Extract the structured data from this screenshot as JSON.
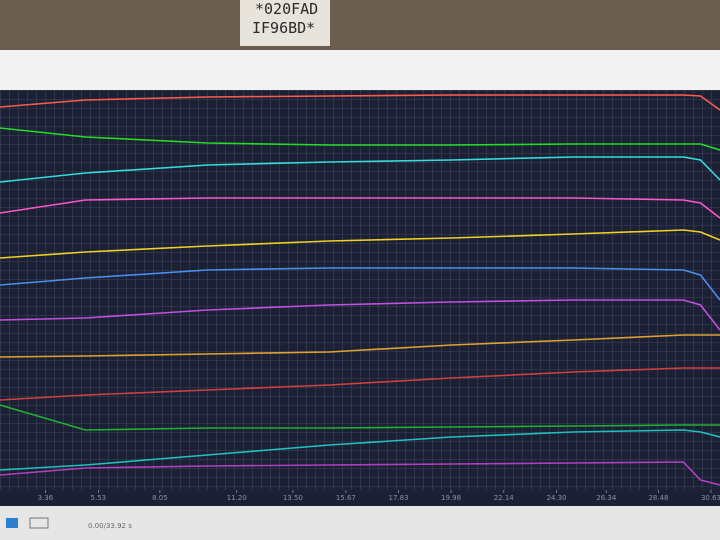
{
  "sticker": {
    "line1": "*020FAD",
    "line2": "IF96BD*"
  },
  "status": "0.00/33.92 s",
  "chart_data": {
    "type": "line",
    "x": [
      1.5,
      5,
      10,
      15,
      20,
      25,
      29.5,
      30.2,
      31
    ],
    "xlim": [
      1.5,
      31
    ],
    "ylim": [
      0,
      100
    ],
    "xticks": [
      3.36,
      5.53,
      8.05,
      {
        "value": 11.2,
        "label": "11.20"
      },
      {
        "value": 13.5,
        "label": "13.50"
      },
      15.67,
      17.83,
      19.98,
      22.14,
      {
        "value": 24.3,
        "label": "24.30"
      },
      26.34,
      28.48,
      30.63
    ],
    "grid": true,
    "series": [
      {
        "color": "#ff5a4a",
        "values": [
          95.75,
          97.5,
          98.25,
          98.5,
          98.75,
          98.75,
          98.75,
          98.5,
          95
        ]
      },
      {
        "color": "#22dd22",
        "values": [
          90.5,
          88.25,
          86.75,
          86.25,
          86.25,
          86.5,
          86.5,
          86.5,
          85
        ]
      },
      {
        "color": "#33dddd",
        "values": [
          77,
          79.25,
          81.25,
          82,
          82.5,
          83.25,
          83.25,
          82.5,
          77.5
        ]
      },
      {
        "color": "#ff55cc",
        "values": [
          69.25,
          72.5,
          73,
          73,
          73,
          73,
          72.5,
          71.75,
          68
        ]
      },
      {
        "color": "#f0d020",
        "values": [
          58,
          59.5,
          61,
          62.25,
          63,
          64,
          65,
          64.5,
          62.5
        ]
      },
      {
        "color": "#4a8ff0",
        "values": [
          51.25,
          53,
          55,
          55.5,
          55.5,
          55.5,
          55,
          53.75,
          47.5
        ]
      },
      {
        "color": "#c050e0",
        "values": [
          42.5,
          43,
          45,
          46.25,
          47,
          47.5,
          47.5,
          46.25,
          40
        ]
      },
      {
        "color": "#e0a030",
        "values": [
          33.25,
          33.5,
          34,
          34.5,
          36.25,
          37.5,
          38.75,
          38.75,
          38.75
        ]
      },
      {
        "color": "#d04040",
        "values": [
          22.5,
          23.75,
          25,
          26.25,
          28,
          29.5,
          30.5,
          30.5,
          30.5
        ]
      },
      {
        "color": "#20b030",
        "values": [
          21.25,
          15,
          15.5,
          15.5,
          15.75,
          16,
          16.25,
          16.25,
          16.25
        ]
      },
      {
        "color": "#20c0c0",
        "values": [
          5,
          6.25,
          8.75,
          11.25,
          13.25,
          14.5,
          15,
          14.5,
          13.25
        ]
      },
      {
        "color": "#b040c0",
        "values": [
          3.75,
          5.5,
          6,
          6.25,
          6.5,
          6.75,
          7,
          2.5,
          1.25
        ]
      }
    ]
  }
}
